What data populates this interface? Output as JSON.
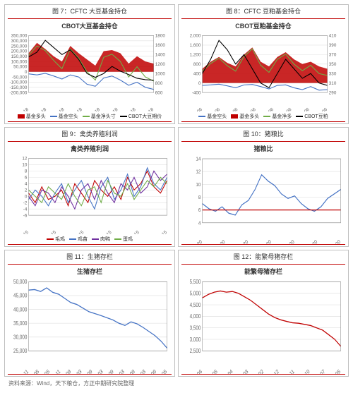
{
  "source_line": "资料来源：Wind，天下粮仓，方正中期研究院整理",
  "charts": [
    {
      "caption": "图 7：CFTC 大豆基金持仓",
      "title": "CBOT大豆基金持仓",
      "type": "line+area",
      "left_axis": {
        "min": -200000,
        "max": 350000,
        "step": 50000
      },
      "right_axis": {
        "min": 600,
        "max": 1800,
        "step": 200
      },
      "x_labels": [
        "2011-08-18",
        "2012-08-18",
        "2013-08-18",
        "2014-08-18",
        "2015-08-18",
        "2016-08-18",
        "2017-08-18",
        "2018-08-18"
      ],
      "series": [
        {
          "name": "基金多头",
          "kind": "area",
          "color": "#c00000",
          "values": [
            180000,
            280000,
            220000,
            150000,
            100000,
            250000,
            180000,
            120000,
            60000,
            200000,
            210000,
            180000,
            80000,
            150000,
            100000,
            80000
          ]
        },
        {
          "name": "基金空头",
          "kind": "line",
          "color": "#4472c4",
          "values": [
            -20000,
            -30000,
            -15000,
            -40000,
            -70000,
            -30000,
            -50000,
            -120000,
            -140000,
            -60000,
            -40000,
            -80000,
            -130000,
            -100000,
            -150000,
            -170000
          ]
        },
        {
          "name": "基金净头寸",
          "kind": "line",
          "color": "#70ad47",
          "values": [
            160000,
            250000,
            205000,
            110000,
            30000,
            220000,
            130000,
            0,
            -80000,
            140000,
            170000,
            100000,
            -50000,
            50000,
            -50000,
            -90000
          ]
        },
        {
          "name": "CBOT大豆期价",
          "kind": "line",
          "color": "#000000",
          "axis": "right",
          "values": [
            1350,
            1450,
            1700,
            1550,
            1400,
            1500,
            1300,
            1000,
            920,
            1000,
            1150,
            1050,
            980,
            900,
            870,
            860
          ]
        }
      ],
      "legend": [
        {
          "label": "基金多头",
          "color": "#c00000",
          "area": true
        },
        {
          "label": "基金空头",
          "color": "#4472c4"
        },
        {
          "label": "基金净头寸",
          "color": "#70ad47"
        },
        {
          "label": "CBOT大豆期价",
          "color": "#000000"
        }
      ]
    },
    {
      "caption": "图 8：CFTC 豆粕基金持仓",
      "title": "CBOT豆粕基金持仓",
      "type": "line+area",
      "left_axis": {
        "min": -400,
        "max": 2000,
        "step": 400
      },
      "right_axis": {
        "min": 290,
        "max": 410,
        "step": 20
      },
      "x_labels": [
        "2011-07-06",
        "2012-07-06",
        "2013-07-06",
        "2014-07-06",
        "2015-07-06",
        "2016-07-06",
        "2017-07-06",
        "2018-07-06"
      ],
      "series": [
        {
          "name": "基金多头",
          "kind": "area",
          "color": "#c00000",
          "values": [
            600,
            900,
            1100,
            850,
            700,
            1200,
            1500,
            900,
            700,
            1100,
            1300,
            1000,
            800,
            900,
            700,
            600
          ]
        },
        {
          "name": "基金空头",
          "kind": "line",
          "color": "#4472c4",
          "values": [
            -100,
            -80,
            -50,
            -120,
            -200,
            -80,
            -60,
            -150,
            -250,
            -100,
            -80,
            -200,
            -280,
            -150,
            -300,
            -280
          ]
        },
        {
          "name": "基金净多",
          "kind": "line",
          "color": "#70ad47",
          "values": [
            500,
            820,
            1050,
            730,
            500,
            1120,
            1440,
            750,
            450,
            1000,
            1220,
            800,
            520,
            750,
            400,
            320
          ]
        },
        {
          "name": "CBOT豆粕",
          "kind": "line",
          "color": "#000000",
          "axis": "right",
          "values": [
            330,
            360,
            400,
            380,
            350,
            370,
            340,
            310,
            300,
            330,
            360,
            340,
            320,
            330,
            310,
            305
          ]
        }
      ],
      "legend": [
        {
          "label": "基金空头",
          "color": "#4472c4"
        },
        {
          "label": "基金多头",
          "color": "#c00000",
          "area": true
        },
        {
          "label": "基金净多",
          "color": "#70ad47"
        },
        {
          "label": "CBOT豆粕",
          "color": "#000000"
        }
      ]
    },
    {
      "caption": "图 9：禽类养殖利润",
      "title": "禽类养殖利润",
      "type": "line",
      "left_axis": {
        "min": -6,
        "max": 12,
        "step": 2
      },
      "x_labels": [
        "2013-05-15",
        "2014-05-15",
        "2015-05-15",
        "2016-05-15",
        "2017-05-15",
        "2018-05-15"
      ],
      "series": [
        {
          "name": "毛鸡",
          "kind": "line",
          "color": "#c00000",
          "values": [
            1,
            -2,
            3,
            -1,
            0,
            2,
            -3,
            4,
            1,
            -2,
            5,
            2,
            0,
            3,
            -1,
            6,
            2,
            4,
            8,
            3,
            1,
            5
          ]
        },
        {
          "name": "鸡苗",
          "kind": "line",
          "color": "#4472c4",
          "values": [
            -1,
            2,
            0,
            -3,
            1,
            4,
            -2,
            2,
            5,
            0,
            -4,
            3,
            6,
            -1,
            2,
            7,
            0,
            3,
            9,
            4,
            2,
            6
          ]
        },
        {
          "name": "肉鸭",
          "kind": "line",
          "color": "#7030a0",
          "values": [
            0,
            -3,
            2,
            1,
            -2,
            3,
            0,
            -4,
            2,
            4,
            -1,
            5,
            1,
            -2,
            4,
            2,
            6,
            1,
            3,
            8,
            5,
            7
          ]
        },
        {
          "name": "蛋鸡",
          "kind": "line",
          "color": "#70ad47",
          "values": [
            2,
            0,
            -2,
            3,
            1,
            -1,
            4,
            0,
            -3,
            2,
            3,
            -2,
            5,
            1,
            0,
            4,
            -1,
            2,
            5,
            3,
            6,
            4
          ]
        }
      ],
      "legend": [
        {
          "label": "毛鸡",
          "color": "#c00000"
        },
        {
          "label": "鸡苗",
          "color": "#4472c4"
        },
        {
          "label": "肉鸭",
          "color": "#7030a0"
        },
        {
          "label": "蛋鸡",
          "color": "#70ad47"
        }
      ]
    },
    {
      "caption": "图 10：猪粮比",
      "title": "猪粮比",
      "type": "line",
      "left_axis": {
        "min": 4,
        "max": 14,
        "step": 2
      },
      "x_labels": [
        "2013-02-20",
        "2014-02-20",
        "2015-07-20",
        "2016-02-20",
        "2017-07-20",
        "2018-02-20",
        "2018-07-20"
      ],
      "series": [
        {
          "name": "猪粮比",
          "kind": "line",
          "color": "#4472c4",
          "values": [
            7,
            6.2,
            5.8,
            6.5,
            5.5,
            5.2,
            6.8,
            7.5,
            9.2,
            11.5,
            10.5,
            9.8,
            8.5,
            7.8,
            8.2,
            7.0,
            6.2,
            5.8,
            6.5,
            7.8,
            8.5,
            9.2
          ]
        },
        {
          "name": "基准线",
          "kind": "line",
          "color": "#c00000",
          "values": [
            6,
            6,
            6,
            6,
            6,
            6,
            6,
            6,
            6,
            6,
            6,
            6,
            6,
            6,
            6,
            6,
            6,
            6,
            6,
            6,
            6,
            6
          ]
        }
      ],
      "legend": []
    },
    {
      "caption": "图 11：生猪存栏",
      "title": "生猪存栏",
      "type": "line",
      "left_axis": {
        "min": 25000,
        "max": 50000,
        "step": 5000
      },
      "x_labels": [
        "2011-11",
        "2012-05",
        "2013-05",
        "2013-11",
        "2014-09",
        "2015-03",
        "2015-09",
        "2016-03",
        "2016-09",
        "2017-03",
        "2017-09",
        "2018-03",
        "2018-09",
        "2019-05"
      ],
      "series": [
        {
          "name": "生猪存栏",
          "kind": "line",
          "color": "#4472c4",
          "values": [
            47000,
            47200,
            46500,
            47800,
            46200,
            45500,
            44000,
            42500,
            41800,
            40500,
            39200,
            38500,
            37800,
            37000,
            36200,
            35000,
            34200,
            35500,
            34800,
            33500,
            32000,
            30500,
            28500,
            26000
          ]
        }
      ],
      "legend": []
    },
    {
      "caption": "图 12：能繁母猪存栏",
      "title": "能繁母猪存栏",
      "type": "line",
      "left_axis": {
        "min": 2500,
        "max": 5500,
        "step": 500
      },
      "x_labels": [
        "2011-06",
        "2012-05",
        "2013-04",
        "2014-03",
        "2015-02",
        "2015-12",
        "2016-11",
        "2017-10",
        "2018-07",
        "2019-05"
      ],
      "series": [
        {
          "name": "能繁母猪",
          "kind": "line",
          "color": "#c00000",
          "values": [
            4800,
            4950,
            5050,
            5100,
            5050,
            5080,
            5000,
            4850,
            4700,
            4500,
            4300,
            4100,
            3950,
            3850,
            3780,
            3720,
            3700,
            3650,
            3600,
            3500,
            3400,
            3200,
            3000,
            2700
          ]
        }
      ],
      "legend": []
    }
  ]
}
